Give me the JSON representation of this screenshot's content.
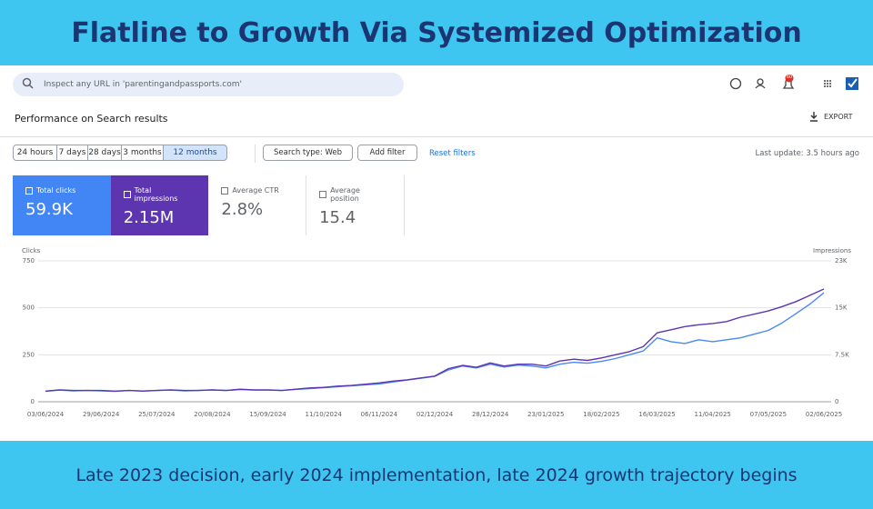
{
  "header": {
    "title": "Flatline to Growth Via Systemized Optimization"
  },
  "search": {
    "placeholder": "Inspect any URL in 'parentingandpassports.com'",
    "badge": "60"
  },
  "page": {
    "title": "Performance on Search results",
    "export": "EXPORT"
  },
  "filters": {
    "ranges": [
      "24 hours",
      "7 days",
      "28 days",
      "3 months",
      "12 months"
    ],
    "selected": 4,
    "search_type": "Search type: Web",
    "add_filter": "Add filter",
    "reset": "Reset filters",
    "last_update": "Last update: 3.5 hours ago"
  },
  "cards": [
    {
      "label": "Total clicks",
      "value": "59.9K",
      "checked": true,
      "color": "#4285f4"
    },
    {
      "label": "Total impressions",
      "value": "2.15M",
      "checked": true,
      "color": "#5e35b1"
    },
    {
      "label": "Average CTR",
      "value": "2.8%",
      "checked": false
    },
    {
      "label": "Average position",
      "value": "15.4",
      "checked": false
    }
  ],
  "chart_data": {
    "type": "line",
    "y_label": "Clicks",
    "y2_label": "Impressions",
    "categories": [
      "03/06/2024",
      null,
      null,
      null,
      "29/06/2024",
      null,
      null,
      null,
      "25/07/2024",
      null,
      null,
      null,
      "20/08/2024",
      null,
      null,
      null,
      "15/09/2024",
      null,
      null,
      null,
      "11/10/2024",
      null,
      null,
      null,
      "06/11/2024",
      null,
      null,
      null,
      "02/12/2024",
      null,
      null,
      null,
      "28/12/2024",
      null,
      null,
      null,
      "23/01/2025",
      null,
      null,
      null,
      "18/02/2025",
      null,
      null,
      null,
      "16/03/2025",
      null,
      null,
      null,
      "11/04/2025",
      null,
      null,
      null,
      "07/05/2025",
      null,
      null,
      null,
      "02/06/2025"
    ],
    "series": [
      {
        "name": "Clicks",
        "color": "#4a8af4",
        "axis": "y",
        "values": [
          55,
          62,
          58,
          60,
          58,
          55,
          60,
          57,
          60,
          62,
          58,
          60,
          63,
          60,
          65,
          62,
          62,
          60,
          66,
          70,
          75,
          80,
          85,
          90,
          95,
          105,
          115,
          125,
          135,
          170,
          190,
          180,
          200,
          185,
          195,
          190,
          180,
          200,
          210,
          205,
          215,
          230,
          250,
          270,
          340,
          320,
          310,
          330,
          320,
          330,
          340,
          360,
          380,
          420,
          470,
          520,
          580
        ]
      },
      {
        "name": "Impressions",
        "color": "#5e35b1",
        "axis": "y2",
        "values": [
          1700,
          1900,
          1800,
          1800,
          1800,
          1700,
          1800,
          1700,
          1800,
          1900,
          1800,
          1800,
          1900,
          1800,
          2000,
          1900,
          1900,
          1800,
          2000,
          2200,
          2300,
          2500,
          2600,
          2800,
          3000,
          3300,
          3500,
          3800,
          4100,
          5300,
          5800,
          5500,
          6200,
          5700,
          6000,
          6000,
          5700,
          6500,
          6800,
          6600,
          7000,
          7500,
          8000,
          8800,
          11000,
          11500,
          12000,
          12300,
          12500,
          12800,
          13500,
          14000,
          14500,
          15200,
          16000,
          17000,
          18000
        ]
      }
    ],
    "ylim": [
      0,
      750
    ],
    "yticks": [
      0,
      250,
      500,
      750
    ],
    "y2lim": [
      0,
      22500
    ],
    "y2ticks": [
      0,
      {
        "value": 7500,
        "label": "7.5K"
      },
      {
        "value": 15000,
        "label": "15K"
      },
      {
        "value": 22500,
        "label": "23K"
      }
    ],
    "grid": true
  },
  "footer": {
    "caption": "Late 2023 decision, early 2024 implementation, late 2024 growth trajectory begins"
  }
}
